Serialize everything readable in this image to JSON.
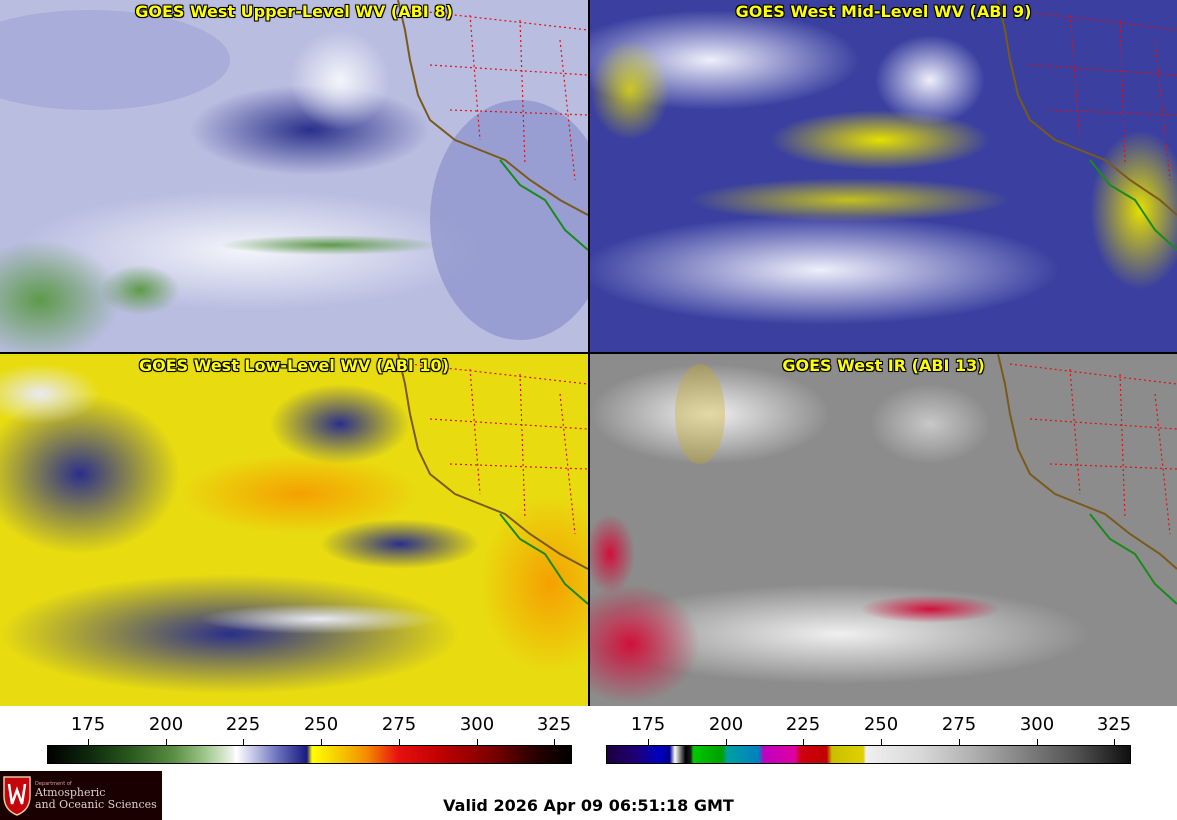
{
  "panels": [
    {
      "title": "GOES West Upper-Level WV (ABI 8)"
    },
    {
      "title": "GOES West Mid-Level WV (ABI 9)"
    },
    {
      "title": "GOES West Low-Level WV (ABI 10)"
    },
    {
      "title": "GOES West IR (ABI 13)"
    }
  ],
  "colorbars": [
    {
      "name": "water-vapor",
      "ticks": [
        "175",
        "200",
        "225",
        "250",
        "275",
        "300",
        "325"
      ]
    },
    {
      "name": "infrared",
      "ticks": [
        "175",
        "200",
        "225",
        "250",
        "275",
        "300",
        "325"
      ]
    }
  ],
  "logo": {
    "line1": "Department of",
    "line2": "Atmospheric",
    "line3": "and Oceanic Sciences"
  },
  "valid_time": "Valid 2026 Apr 09 06:51:18 GMT"
}
